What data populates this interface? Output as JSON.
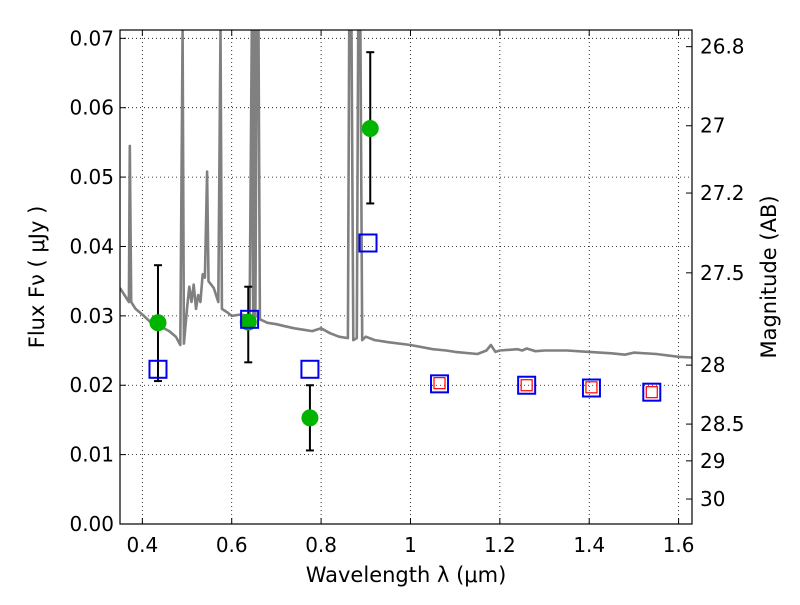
{
  "chart_data": {
    "type": "scatter",
    "xlabel": "Wavelength  λ (μm)",
    "ylabel": "Flux  Fν  ( μJy )",
    "ylabel_right": "Magnitude (AB)",
    "xlim": [
      0.35,
      1.63
    ],
    "ylim": [
      0.0,
      0.0712
    ],
    "grid": true,
    "grid_style": "dotted",
    "x_ticks": [
      0.4,
      0.6,
      0.8,
      1.0,
      1.2,
      1.4,
      1.6
    ],
    "x_tick_labels": [
      "0.4",
      "0.6",
      "0.8",
      "1",
      "1.2",
      "1.4",
      "1.6"
    ],
    "y_ticks": [
      0.0,
      0.01,
      0.02,
      0.03,
      0.04,
      0.05,
      0.06,
      0.07
    ],
    "y_tick_labels": [
      "0.00",
      "0.01",
      "0.02",
      "0.03",
      "0.04",
      "0.05",
      "0.06",
      "0.07"
    ],
    "right_ticks": [
      {
        "label": "26.8",
        "flux": 0.0688
      },
      {
        "label": "27",
        "flux": 0.0574
      },
      {
        "label": "27.2",
        "flux": 0.0477
      },
      {
        "label": "27.5",
        "flux": 0.0362
      },
      {
        "label": "28",
        "flux": 0.0229
      },
      {
        "label": "28.5",
        "flux": 0.0144
      },
      {
        "label": "29",
        "flux": 0.0091
      },
      {
        "label": "30",
        "flux": 0.0036
      }
    ],
    "series": [
      {
        "style": "line",
        "color": "#808080",
        "points": [
          [
            0.35,
            0.034
          ],
          [
            0.36,
            0.033
          ],
          [
            0.37,
            0.032
          ],
          [
            0.372,
            0.0545
          ],
          [
            0.375,
            0.032
          ],
          [
            0.385,
            0.031
          ],
          [
            0.4,
            0.0302
          ],
          [
            0.42,
            0.029
          ],
          [
            0.44,
            0.0285
          ],
          [
            0.46,
            0.0278
          ],
          [
            0.475,
            0.027
          ],
          [
            0.485,
            0.0258
          ],
          [
            0.49,
            0.0712
          ],
          [
            0.493,
            0.026
          ],
          [
            0.5,
            0.031
          ],
          [
            0.505,
            0.0342
          ],
          [
            0.51,
            0.032
          ],
          [
            0.515,
            0.0345
          ],
          [
            0.52,
            0.031
          ],
          [
            0.525,
            0.033
          ],
          [
            0.53,
            0.032
          ],
          [
            0.535,
            0.036
          ],
          [
            0.54,
            0.0355
          ],
          [
            0.545,
            0.0508
          ],
          [
            0.548,
            0.035
          ],
          [
            0.56,
            0.034
          ],
          [
            0.57,
            0.032
          ],
          [
            0.575,
            0.0712
          ],
          [
            0.578,
            0.031
          ],
          [
            0.59,
            0.0305
          ],
          [
            0.6,
            0.03
          ],
          [
            0.62,
            0.0302
          ],
          [
            0.64,
            0.03
          ],
          [
            0.645,
            0.0712
          ],
          [
            0.648,
            0.03
          ],
          [
            0.65,
            0.0712
          ],
          [
            0.653,
            0.0298
          ],
          [
            0.656,
            0.0712
          ],
          [
            0.66,
            0.0712
          ],
          [
            0.663,
            0.0295
          ],
          [
            0.68,
            0.029
          ],
          [
            0.7,
            0.0288
          ],
          [
            0.72,
            0.0285
          ],
          [
            0.74,
            0.0282
          ],
          [
            0.76,
            0.028
          ],
          [
            0.78,
            0.0278
          ],
          [
            0.8,
            0.0282
          ],
          [
            0.82,
            0.0275
          ],
          [
            0.84,
            0.027
          ],
          [
            0.86,
            0.0268
          ],
          [
            0.863,
            0.0712
          ],
          [
            0.868,
            0.0712
          ],
          [
            0.872,
            0.0265
          ],
          [
            0.88,
            0.0268
          ],
          [
            0.883,
            0.0712
          ],
          [
            0.888,
            0.0712
          ],
          [
            0.892,
            0.0265
          ],
          [
            0.9,
            0.027
          ],
          [
            0.92,
            0.0265
          ],
          [
            0.95,
            0.0262
          ],
          [
            1.0,
            0.0258
          ],
          [
            1.05,
            0.0252
          ],
          [
            1.08,
            0.025
          ],
          [
            1.1,
            0.0248
          ],
          [
            1.15,
            0.0245
          ],
          [
            1.17,
            0.025
          ],
          [
            1.18,
            0.0258
          ],
          [
            1.19,
            0.0248
          ],
          [
            1.2,
            0.025
          ],
          [
            1.24,
            0.0252
          ],
          [
            1.25,
            0.025
          ],
          [
            1.26,
            0.0253
          ],
          [
            1.28,
            0.0249
          ],
          [
            1.3,
            0.025
          ],
          [
            1.35,
            0.025
          ],
          [
            1.4,
            0.0248
          ],
          [
            1.45,
            0.0246
          ],
          [
            1.48,
            0.0244
          ],
          [
            1.5,
            0.0247
          ],
          [
            1.55,
            0.0245
          ],
          [
            1.6,
            0.0241
          ],
          [
            1.63,
            0.024
          ]
        ]
      },
      {
        "style": "circle",
        "color": "#00b400",
        "points": [
          {
            "x": 0.435,
            "y": 0.029,
            "err_low": 0.0206,
            "err_high": 0.0373
          },
          {
            "x": 0.637,
            "y": 0.0291,
            "err_low": 0.0233,
            "err_high": 0.0342
          },
          {
            "x": 0.775,
            "y": 0.0153,
            "err_low": 0.0106,
            "err_high": 0.02
          },
          {
            "x": 0.91,
            "y": 0.057,
            "err_low": 0.0462,
            "err_high": 0.068
          }
        ]
      },
      {
        "style": "square",
        "color": "#0000ee",
        "points": [
          {
            "x": 0.435,
            "y": 0.0223
          },
          {
            "x": 0.64,
            "y": 0.0295
          },
          {
            "x": 0.775,
            "y": 0.0223
          },
          {
            "x": 0.905,
            "y": 0.0405
          },
          {
            "x": 1.065,
            "y": 0.0202
          },
          {
            "x": 1.26,
            "y": 0.02
          },
          {
            "x": 1.405,
            "y": 0.0196
          },
          {
            "x": 1.54,
            "y": 0.019
          }
        ]
      },
      {
        "style": "square-small",
        "color": "#ff0000",
        "points": [
          {
            "x": 1.065,
            "y": 0.0203
          },
          {
            "x": 1.26,
            "y": 0.02
          },
          {
            "x": 1.405,
            "y": 0.0197
          },
          {
            "x": 1.54,
            "y": 0.019
          }
        ]
      }
    ]
  }
}
